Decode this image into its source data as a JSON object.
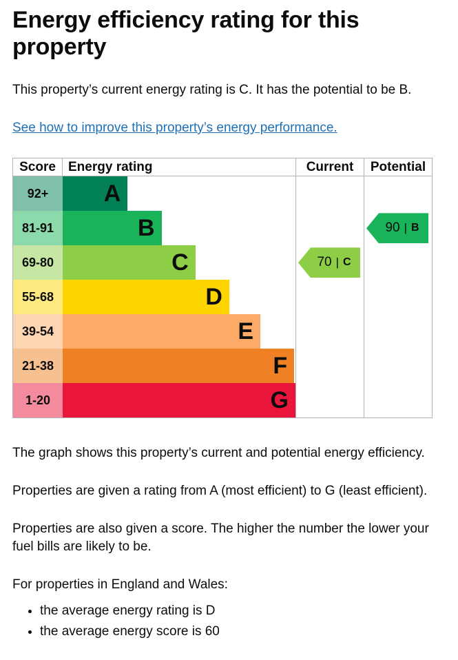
{
  "page": {
    "title": "Energy efficiency rating for this property",
    "intro": "This property’s current energy rating is C. It has the potential to be B.",
    "improve_link": "See how to improve this property’s energy performance."
  },
  "chart": {
    "headers": {
      "score": "Score",
      "rating": "Energy rating",
      "current": "Current",
      "potential": "Potential"
    },
    "bands": [
      {
        "score": "92+",
        "letter": "A",
        "color": "#008054",
        "score_bg": "#80c0aa",
        "width_pct": 23
      },
      {
        "score": "81-91",
        "letter": "B",
        "color": "#19b459",
        "score_bg": "#8cdaac",
        "width_pct": 35
      },
      {
        "score": "69-80",
        "letter": "C",
        "color": "#8dce46",
        "score_bg": "#c6e7a3",
        "width_pct": 47
      },
      {
        "score": "55-68",
        "letter": "D",
        "color": "#ffd500",
        "score_bg": "#ffea80",
        "width_pct": 59
      },
      {
        "score": "39-54",
        "letter": "E",
        "color": "#fcaa65",
        "score_bg": "#fed5b2",
        "width_pct": 70
      },
      {
        "score": "21-38",
        "letter": "F",
        "color": "#ef8023",
        "score_bg": "#f7c091",
        "width_pct": 82
      },
      {
        "score": "1-20",
        "letter": "G",
        "color": "#e9153b",
        "score_bg": "#f48a9d",
        "width_pct": 94
      }
    ],
    "current": {
      "value": "70",
      "letter": "C",
      "color": "#8dce46"
    },
    "potential": {
      "value": "90",
      "letter": "B",
      "color": "#19b459"
    }
  },
  "chart_data": {
    "type": "bar",
    "title": "Energy efficiency rating for this property",
    "categories": [
      "A",
      "B",
      "C",
      "D",
      "E",
      "F",
      "G"
    ],
    "score_ranges": [
      "92+",
      "81-91",
      "69-80",
      "55-68",
      "39-54",
      "21-38",
      "1-20"
    ],
    "band_colors": [
      "#008054",
      "#19b459",
      "#8dce46",
      "#ffd500",
      "#fcaa65",
      "#ef8023",
      "#e9153b"
    ],
    "bar_widths_pct": [
      23,
      35,
      47,
      59,
      70,
      82,
      94
    ],
    "markers": [
      {
        "label": "Current",
        "score": 70,
        "rating": "C"
      },
      {
        "label": "Potential",
        "score": 90,
        "rating": "B"
      }
    ],
    "legend_position": "columns-right",
    "grid": false
  },
  "description": {
    "p1": "The graph shows this property’s current and potential energy efficiency.",
    "p2": "Properties are given a rating from A (most efficient) to G (least efficient).",
    "p3": "Properties are also given a score. The higher the number the lower your fuel bills are likely to be.",
    "p4": "For properties in England and Wales:",
    "bullets": [
      "the average energy rating is D",
      "the average energy score is 60"
    ]
  }
}
